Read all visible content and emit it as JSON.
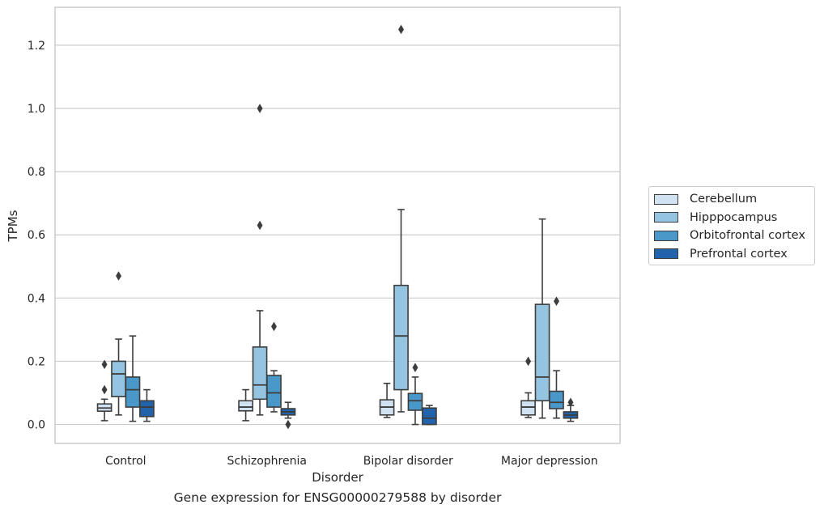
{
  "chart_data": {
    "type": "box",
    "xlabel": "Disorder",
    "ylabel": "TPMs",
    "caption": "Gene expression for ENSG00000279588 by disorder",
    "ylim": [
      -0.06,
      1.32
    ],
    "yticks": [
      "0.0",
      "0.2",
      "0.4",
      "0.6",
      "0.8",
      "1.0",
      "1.2"
    ],
    "grid": "horizontal",
    "legend_position": "right, outside plot",
    "categories": [
      "Control",
      "Schizophrenia",
      "Bipolar disorder",
      "Major depression"
    ],
    "series": [
      {
        "name": "Cerebellum",
        "color": "#d0e1f2",
        "boxes": [
          {
            "whislo": 0.012,
            "q1": 0.042,
            "med": 0.052,
            "q3": 0.065,
            "whishi": 0.08,
            "fliers": [
              0.11,
              0.19
            ]
          },
          {
            "whislo": 0.012,
            "q1": 0.043,
            "med": 0.055,
            "q3": 0.075,
            "whishi": 0.11,
            "fliers": []
          },
          {
            "whislo": 0.022,
            "q1": 0.03,
            "med": 0.055,
            "q3": 0.078,
            "whishi": 0.13,
            "fliers": []
          },
          {
            "whislo": 0.022,
            "q1": 0.03,
            "med": 0.055,
            "q3": 0.075,
            "whishi": 0.1,
            "fliers": [
              0.2
            ]
          }
        ]
      },
      {
        "name": "Hipppocampus",
        "color": "#94c4df",
        "boxes": [
          {
            "whislo": 0.03,
            "q1": 0.088,
            "med": 0.16,
            "q3": 0.2,
            "whishi": 0.27,
            "fliers": [
              0.47
            ]
          },
          {
            "whislo": 0.03,
            "q1": 0.08,
            "med": 0.125,
            "q3": 0.245,
            "whishi": 0.36,
            "fliers": [
              0.63,
              1.0
            ]
          },
          {
            "whislo": 0.04,
            "q1": 0.11,
            "med": 0.28,
            "q3": 0.44,
            "whishi": 0.68,
            "fliers": [
              1.25
            ]
          },
          {
            "whislo": 0.02,
            "q1": 0.075,
            "med": 0.15,
            "q3": 0.38,
            "whishi": 0.65,
            "fliers": []
          }
        ]
      },
      {
        "name": "Orbitofrontal cortex",
        "color": "#4a98c9",
        "boxes": [
          {
            "whislo": 0.01,
            "q1": 0.055,
            "med": 0.11,
            "q3": 0.15,
            "whishi": 0.28,
            "fliers": []
          },
          {
            "whislo": 0.04,
            "q1": 0.055,
            "med": 0.1,
            "q3": 0.155,
            "whishi": 0.17,
            "fliers": [
              0.31
            ]
          },
          {
            "whislo": 0.0,
            "q1": 0.045,
            "med": 0.075,
            "q3": 0.098,
            "whishi": 0.15,
            "fliers": [
              0.18
            ]
          },
          {
            "whislo": 0.02,
            "q1": 0.05,
            "med": 0.07,
            "q3": 0.105,
            "whishi": 0.17,
            "fliers": [
              0.39
            ]
          }
        ]
      },
      {
        "name": "Prefrontal cortex",
        "color": "#2164ab",
        "boxes": [
          {
            "whislo": 0.01,
            "q1": 0.025,
            "med": 0.055,
            "q3": 0.075,
            "whishi": 0.11,
            "fliers": []
          },
          {
            "whislo": 0.02,
            "q1": 0.03,
            "med": 0.04,
            "q3": 0.05,
            "whishi": 0.07,
            "fliers": [
              0.0
            ]
          },
          {
            "whislo": 0.0,
            "q1": 0.0,
            "med": 0.02,
            "q3": 0.052,
            "whishi": 0.06,
            "fliers": []
          },
          {
            "whislo": 0.01,
            "q1": 0.02,
            "med": 0.03,
            "q3": 0.04,
            "whishi": 0.06,
            "fliers": [
              0.07
            ]
          }
        ]
      }
    ]
  }
}
